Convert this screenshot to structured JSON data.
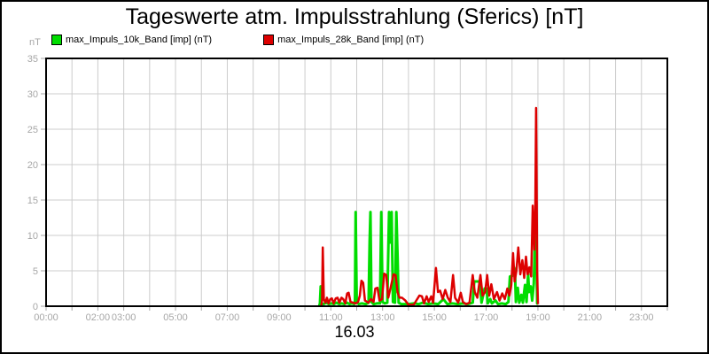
{
  "chart_data": {
    "type": "line",
    "title": "Tageswerte atm. Impulsstrahlung (Sferics) [nT]",
    "ylabel": "nT",
    "xlabel": "16.03",
    "x_unit": "hours_of_day",
    "xlim": [
      0,
      24
    ],
    "ylim": [
      0,
      35
    ],
    "grid": true,
    "grid_color": "#cccccc",
    "axis_label_color": "#a6a6a6",
    "y_ticks": [
      0,
      5,
      10,
      15,
      20,
      25,
      30,
      35
    ],
    "x_tick_labels": [
      {
        "t": 0,
        "label": "00:00"
      },
      {
        "t": 2,
        "label": "02:00"
      },
      {
        "t": 3,
        "label": "03:00"
      },
      {
        "t": 5,
        "label": "05:00"
      },
      {
        "t": 7,
        "label": "07:00"
      },
      {
        "t": 9,
        "label": "09:00"
      },
      {
        "t": 11,
        "label": "11:00"
      },
      {
        "t": 13,
        "label": "13:00"
      },
      {
        "t": 15,
        "label": "15:00"
      },
      {
        "t": 17,
        "label": "17:00"
      },
      {
        "t": 19,
        "label": "19:00"
      },
      {
        "t": 21,
        "label": "21:00"
      },
      {
        "t": 23,
        "label": "23:00"
      }
    ],
    "legend_position": "top-left",
    "series": [
      {
        "name": "max_Impuls_10k_Band [imp] (nT)",
        "color": "#00dd00",
        "points": [
          [
            10.55,
            0
          ],
          [
            10.58,
            0.4
          ],
          [
            10.61,
            2.8
          ],
          [
            10.64,
            0.4
          ],
          [
            10.72,
            0.3
          ],
          [
            10.82,
            0.5
          ],
          [
            10.92,
            0.3
          ],
          [
            11.02,
            0.4
          ],
          [
            11.12,
            0.3
          ],
          [
            11.22,
            0.5
          ],
          [
            11.32,
            0.3
          ],
          [
            11.42,
            0.4
          ],
          [
            11.52,
            0.3
          ],
          [
            11.62,
            0.5
          ],
          [
            11.72,
            0.3
          ],
          [
            11.82,
            0.4
          ],
          [
            11.9,
            0.3
          ],
          [
            11.93,
            0.5
          ],
          [
            11.96,
            13.3
          ],
          [
            12.0,
            0.6
          ],
          [
            12.08,
            0.3
          ],
          [
            12.2,
            0.4
          ],
          [
            12.35,
            0.3
          ],
          [
            12.46,
            0.5
          ],
          [
            12.5,
            9.2
          ],
          [
            12.53,
            13.3
          ],
          [
            12.57,
            0.6
          ],
          [
            12.65,
            0.3
          ],
          [
            12.78,
            0.4
          ],
          [
            12.9,
            0.4
          ],
          [
            12.95,
            13.3
          ],
          [
            13.0,
            0.6
          ],
          [
            13.08,
            0.4
          ],
          [
            13.18,
            0.5
          ],
          [
            13.25,
            13.3
          ],
          [
            13.3,
            9.0
          ],
          [
            13.35,
            13.3
          ],
          [
            13.4,
            0.6
          ],
          [
            13.48,
            0.5
          ],
          [
            13.53,
            13.3
          ],
          [
            13.58,
            7.0
          ],
          [
            13.62,
            0.5
          ],
          [
            13.72,
            0.3
          ],
          [
            13.85,
            0.3
          ],
          [
            14.0,
            0.3
          ],
          [
            14.2,
            0.4
          ],
          [
            14.4,
            0.3
          ],
          [
            14.55,
            0.5
          ],
          [
            14.75,
            0.3
          ],
          [
            14.95,
            0.4
          ],
          [
            15.15,
            0.3
          ],
          [
            15.35,
            1.0
          ],
          [
            15.5,
            0.3
          ],
          [
            15.7,
            0.4
          ],
          [
            15.9,
            0.3
          ],
          [
            16.1,
            0.4
          ],
          [
            16.3,
            0.3
          ],
          [
            16.48,
            0.5
          ],
          [
            16.54,
            3.5
          ],
          [
            16.76,
            3.5
          ],
          [
            16.82,
            0.5
          ],
          [
            16.94,
            2.5
          ],
          [
            17.02,
            2.5
          ],
          [
            17.06,
            0.4
          ],
          [
            17.16,
            1.0
          ],
          [
            17.22,
            0.4
          ],
          [
            17.36,
            0.8
          ],
          [
            17.46,
            0.3
          ],
          [
            17.6,
            0.4
          ],
          [
            17.76,
            0.3
          ],
          [
            17.86,
            0.6
          ],
          [
            17.92,
            4.2
          ],
          [
            18.02,
            4.3
          ],
          [
            18.07,
            5.5
          ],
          [
            18.11,
            5.2
          ],
          [
            18.15,
            0.6
          ],
          [
            18.22,
            2.6
          ],
          [
            18.28,
            0.5
          ],
          [
            18.36,
            1.6
          ],
          [
            18.42,
            0.5
          ],
          [
            18.5,
            3.0
          ],
          [
            18.56,
            0.6
          ],
          [
            18.62,
            4.5
          ],
          [
            18.66,
            2.0
          ],
          [
            18.72,
            2.8
          ],
          [
            18.78,
            0.8
          ],
          [
            18.84,
            3.2
          ],
          [
            18.89,
            10.2
          ],
          [
            18.93,
            9.5
          ],
          [
            18.97,
            0.4
          ],
          [
            19.0,
            0.3
          ]
        ]
      },
      {
        "name": "max_Impuls_28k_Band [imp] (nT)",
        "color": "#dd0000",
        "points": [
          [
            10.63,
            0
          ],
          [
            10.66,
            0.8
          ],
          [
            10.69,
            8.3
          ],
          [
            10.73,
            1.0
          ],
          [
            10.79,
            0.5
          ],
          [
            10.85,
            1.2
          ],
          [
            10.91,
            0.4
          ],
          [
            10.98,
            1.0
          ],
          [
            11.04,
            1.1
          ],
          [
            11.11,
            0.4
          ],
          [
            11.19,
            1.1
          ],
          [
            11.26,
            1.2
          ],
          [
            11.33,
            0.5
          ],
          [
            11.41,
            1.2
          ],
          [
            11.48,
            1.0
          ],
          [
            11.56,
            0.4
          ],
          [
            11.63,
            1.8
          ],
          [
            11.69,
            1.9
          ],
          [
            11.76,
            0.6
          ],
          [
            11.86,
            0.5
          ],
          [
            11.96,
            0.4
          ],
          [
            12.05,
            0.6
          ],
          [
            12.12,
            1.5
          ],
          [
            12.18,
            3.6
          ],
          [
            12.25,
            3.3
          ],
          [
            12.32,
            0.8
          ],
          [
            12.45,
            0.5
          ],
          [
            12.55,
            1.0
          ],
          [
            12.65,
            0.6
          ],
          [
            12.72,
            2.5
          ],
          [
            12.8,
            2.6
          ],
          [
            12.88,
            0.8
          ],
          [
            12.98,
            1.0
          ],
          [
            13.06,
            4.6
          ],
          [
            13.14,
            4.4
          ],
          [
            13.22,
            1.2
          ],
          [
            13.32,
            2.8
          ],
          [
            13.42,
            4.5
          ],
          [
            13.5,
            4.4
          ],
          [
            13.58,
            2.0
          ],
          [
            13.65,
            1.2
          ],
          [
            13.75,
            1.2
          ],
          [
            13.88,
            0.8
          ],
          [
            14.0,
            0.2
          ],
          [
            14.2,
            0.2
          ],
          [
            14.42,
            1.5
          ],
          [
            14.52,
            1.4
          ],
          [
            14.6,
            0.4
          ],
          [
            14.7,
            1.4
          ],
          [
            14.78,
            0.6
          ],
          [
            14.88,
            1.4
          ],
          [
            14.95,
            0.5
          ],
          [
            15.06,
            5.4
          ],
          [
            15.14,
            2.0
          ],
          [
            15.22,
            2.2
          ],
          [
            15.32,
            1.0
          ],
          [
            15.42,
            2.3
          ],
          [
            15.52,
            1.2
          ],
          [
            15.62,
            0.6
          ],
          [
            15.72,
            4.4
          ],
          [
            15.8,
            1.2
          ],
          [
            15.92,
            0.5
          ],
          [
            16.02,
            1.9
          ],
          [
            16.1,
            0.6
          ],
          [
            16.22,
            0.3
          ],
          [
            16.36,
            0.5
          ],
          [
            16.48,
            4.4
          ],
          [
            16.56,
            2.0
          ],
          [
            16.66,
            1.2
          ],
          [
            16.78,
            4.4
          ],
          [
            16.86,
            1.5
          ],
          [
            16.96,
            2.0
          ],
          [
            17.04,
            4.4
          ],
          [
            17.12,
            1.5
          ],
          [
            17.2,
            3.1
          ],
          [
            17.3,
            1.0
          ],
          [
            17.42,
            2.0
          ],
          [
            17.52,
            0.8
          ],
          [
            17.62,
            1.8
          ],
          [
            17.72,
            1.0
          ],
          [
            17.82,
            2.5
          ],
          [
            17.9,
            1.5
          ],
          [
            17.97,
            3.0
          ],
          [
            18.04,
            7.5
          ],
          [
            18.1,
            3.5
          ],
          [
            18.17,
            5.0
          ],
          [
            18.24,
            8.3
          ],
          [
            18.32,
            4.5
          ],
          [
            18.4,
            6.5
          ],
          [
            18.47,
            4.0
          ],
          [
            18.54,
            7.0
          ],
          [
            18.6,
            4.5
          ],
          [
            18.67,
            5.5
          ],
          [
            18.74,
            4.2
          ],
          [
            18.8,
            14.2
          ],
          [
            18.86,
            8.0
          ],
          [
            18.9,
            14.0
          ],
          [
            18.93,
            28.0
          ],
          [
            18.97,
            5.0
          ],
          [
            19.0,
            0.3
          ]
        ]
      }
    ]
  }
}
